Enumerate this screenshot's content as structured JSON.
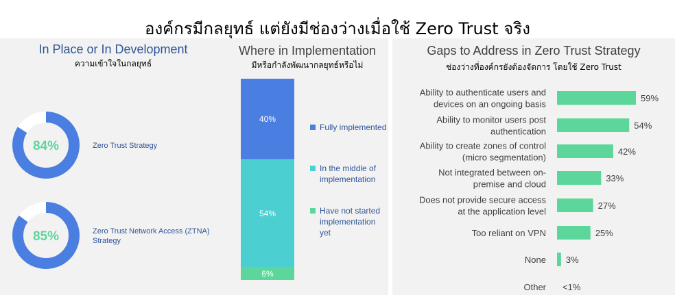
{
  "title": "องค์กรมีกลยุทธ์ แต่ยังมีช่องว่างเมื่อใช้ Zero Trust จริง",
  "colors": {
    "blue": "#4a7ee0",
    "teal": "#4ccfd0",
    "green": "#5dd69b",
    "panel_bg": "#f2f2f2",
    "ring_bg": "#ffffff"
  },
  "chart_data": [
    {
      "type": "pie",
      "title": "In Place or In Development",
      "subtitle": "ความเข้าใจในกลยุทธ์",
      "items": [
        {
          "label": "Zero Trust Strategy",
          "value": 84,
          "display": "84%"
        },
        {
          "label": "Zero Trust Network Access (ZTNA) Strategy",
          "value": 85,
          "display": "85%"
        }
      ]
    },
    {
      "type": "bar",
      "stacked": true,
      "title": "Where in Implementation",
      "subtitle": "มีหรือกำลังพัฒนากลยุทธ์หรือไม่",
      "series": [
        {
          "name": "Fully implemented",
          "value": 40,
          "display": "40%",
          "color": "#4a7ee0"
        },
        {
          "name": "In the middle of implementation",
          "value": 54,
          "display": "54%",
          "color": "#4ccfd0"
        },
        {
          "name": "Have not started implementation yet",
          "value": 6,
          "display": "6%",
          "color": "#5dd69b"
        }
      ]
    },
    {
      "type": "bar",
      "orientation": "horizontal",
      "title": "Gaps to Address in Zero Trust Strategy",
      "subtitle": "ช่องว่างที่องค์กรยังต้องจัดการ โดยใช้ Zero Trust",
      "xlim": [
        0,
        59
      ],
      "items": [
        {
          "label": [
            "Ability to authenticate users and",
            "devices on an ongoing basis"
          ],
          "value": 59,
          "display": "59%"
        },
        {
          "label": [
            "Ability to monitor users post",
            "authentication"
          ],
          "value": 54,
          "display": "54%"
        },
        {
          "label": [
            "Ability to create zones of control",
            "(micro segmentation)"
          ],
          "value": 42,
          "display": "42%"
        },
        {
          "label": [
            "Not integrated between on-",
            "premise and cloud"
          ],
          "value": 33,
          "display": "33%"
        },
        {
          "label": [
            "Does not provide secure access",
            "at the application level"
          ],
          "value": 27,
          "display": "27%"
        },
        {
          "label": [
            "Too reliant on VPN"
          ],
          "value": 25,
          "display": "25%"
        },
        {
          "label": [
            "None"
          ],
          "value": 3,
          "display": "3%"
        },
        {
          "label": [
            "Other"
          ],
          "value": 0.5,
          "display": "<1%"
        }
      ]
    }
  ]
}
